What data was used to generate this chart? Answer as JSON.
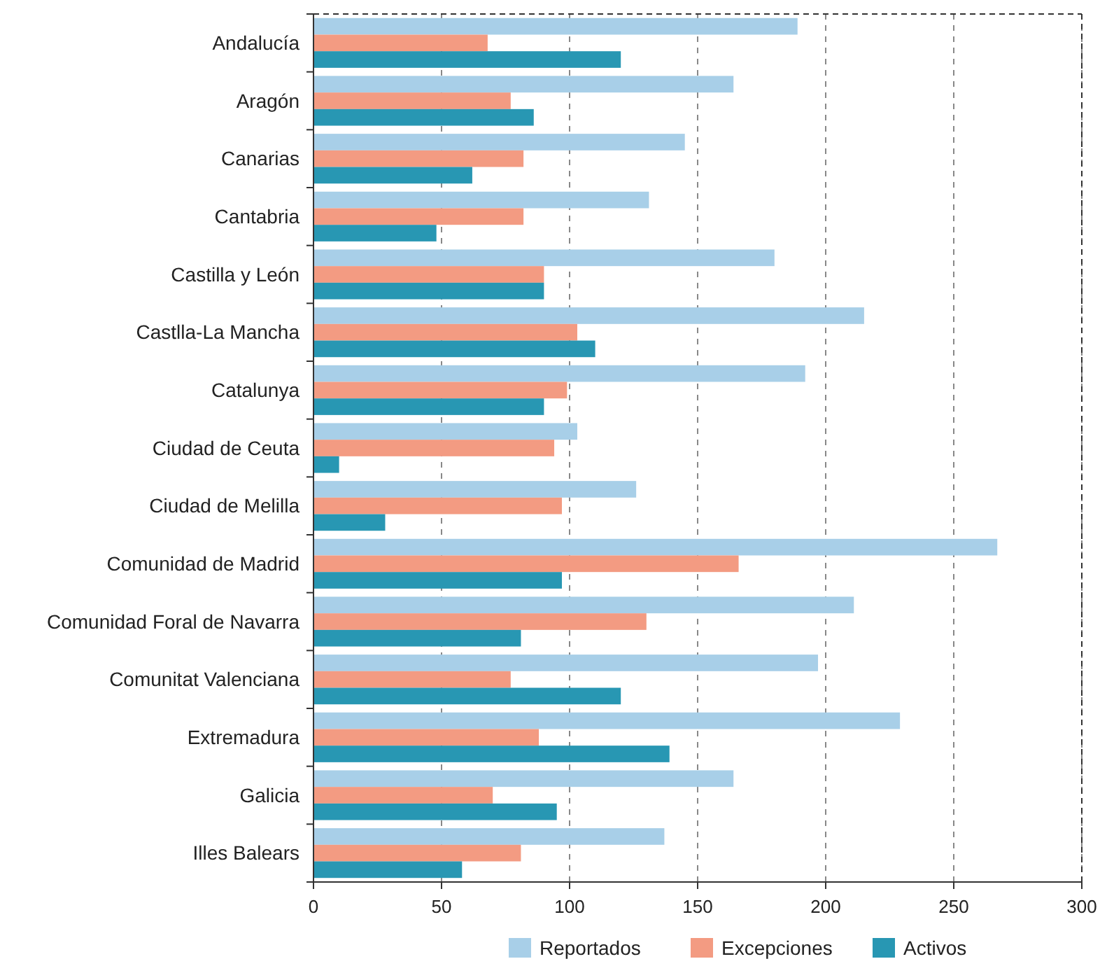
{
  "chart_data": {
    "type": "bar",
    "orientation": "horizontal",
    "categories": [
      "Andalucía",
      "Aragón",
      "Canarias",
      "Cantabria",
      "Castilla y León",
      "Castlla-La Mancha",
      "Catalunya",
      "Ciudad de Ceuta",
      "Ciudad de Melilla",
      "Comunidad de Madrid",
      "Comunidad Foral de Navarra",
      "Comunitat Valenciana",
      "Extremadura",
      "Galicia",
      "Illes Balears"
    ],
    "series": [
      {
        "name": "Reportados",
        "color": "#a8cfe8",
        "values": [
          189,
          164,
          145,
          131,
          180,
          215,
          192,
          103,
          126,
          267,
          211,
          197,
          229,
          164,
          137
        ]
      },
      {
        "name": "Excepciones",
        "color": "#f39b82",
        "values": [
          68,
          77,
          82,
          82,
          90,
          103,
          99,
          94,
          97,
          166,
          130,
          77,
          88,
          70,
          81
        ]
      },
      {
        "name": "Activos",
        "color": "#2897b3",
        "values": [
          120,
          86,
          62,
          48,
          90,
          110,
          90,
          10,
          28,
          97,
          81,
          120,
          139,
          95,
          58
        ]
      }
    ],
    "xlim": [
      0,
      300
    ],
    "xticks": [
      0,
      50,
      100,
      150,
      200,
      250,
      300
    ],
    "grid": "x",
    "legend": "bottom"
  }
}
